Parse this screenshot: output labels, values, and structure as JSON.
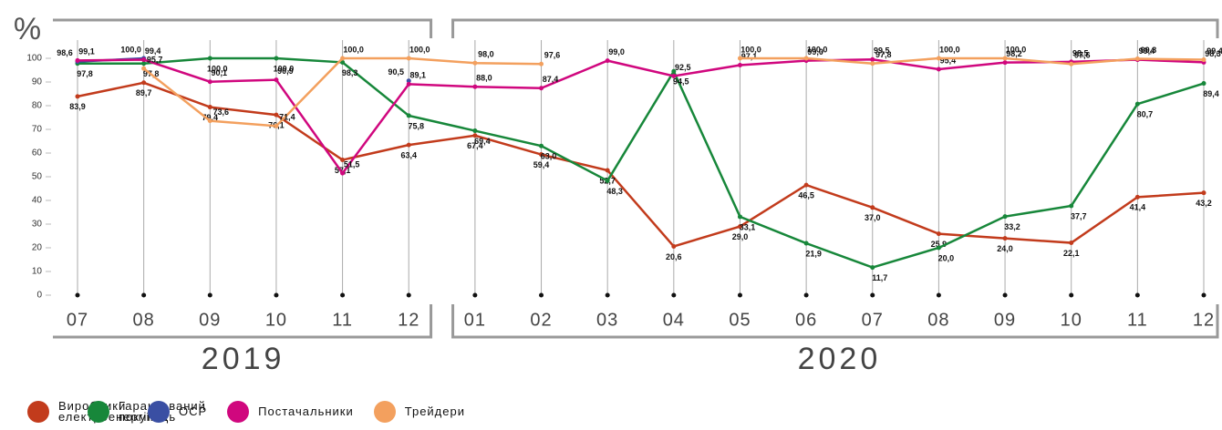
{
  "chart_data": {
    "type": "line",
    "y_label": "%",
    "categories": [
      "07",
      "08",
      "09",
      "10",
      "11",
      "12",
      "01",
      "02",
      "03",
      "04",
      "05",
      "06",
      "07",
      "08",
      "09",
      "10",
      "11",
      "12"
    ],
    "x_groups": [
      {
        "label": "2019",
        "count": 6
      },
      {
        "label": "2020",
        "count": 12
      }
    ],
    "ylim": [
      0,
      100
    ],
    "yticks": [
      0,
      10,
      20,
      30,
      40,
      50,
      60,
      70,
      80,
      90,
      100
    ],
    "series": [
      {
        "name": "Виробники електроенергії",
        "color": "#c23b1c",
        "values": [
          83.9,
          89.7,
          79.4,
          76.1,
          57.1,
          63.4,
          67.4,
          59.4,
          52.7,
          20.6,
          29.0,
          46.5,
          37.0,
          25.9,
          24.0,
          22.1,
          41.4,
          43.2
        ],
        "value_labels": [
          "83,9",
          "89,7",
          "79,4",
          "76,1",
          "57,1",
          "63,4",
          "67,4",
          "59,4",
          "52,7",
          "20,6",
          "29,0",
          "46,5",
          "37,0",
          "25,9",
          "24,0",
          "22,1",
          "41,4",
          "43,2"
        ]
      },
      {
        "name": "Гарантований покупець",
        "color": "#17873a",
        "values": [
          97.8,
          97.8,
          100.0,
          100.0,
          98.3,
          75.8,
          69.4,
          63.0,
          48.3,
          94.5,
          33.1,
          21.9,
          11.7,
          20.0,
          33.2,
          37.7,
          80.7,
          89.4
        ],
        "value_labels": [
          "97,8",
          "97,8",
          "100,0",
          "100,0",
          "98,3",
          "75,8",
          "69,4",
          "63,0",
          "48,3",
          "94,5",
          "33,1",
          "21,9",
          "11,7",
          "20,0",
          "33,2",
          "37,7",
          "80,7",
          "89,4"
        ]
      },
      {
        "name": "ОСР",
        "color": "#3a4fa3",
        "values": [
          98.6,
          100.0,
          null,
          null,
          null,
          90.5,
          null,
          null,
          null,
          null,
          null,
          null,
          null,
          null,
          null,
          null,
          null,
          null
        ],
        "value_labels": [
          "98,6",
          "100,0",
          null,
          null,
          null,
          "90,5",
          null,
          null,
          null,
          null,
          null,
          null,
          null,
          null,
          null,
          null,
          null,
          null
        ]
      },
      {
        "name": "Постачальники",
        "color": "#d0077e",
        "values": [
          99.1,
          99.4,
          90.1,
          90.9,
          51.5,
          89.1,
          88.0,
          87.4,
          99.0,
          92.5,
          97.1,
          99.0,
          99.5,
          95.4,
          98.2,
          98.5,
          99.4,
          98.3
        ],
        "value_labels": [
          "99,1",
          "99,4",
          "90,1",
          "90,9",
          "51,5",
          "89,1",
          "88,0",
          "87,4",
          "99,0",
          "92,5",
          "97,1",
          "99,0",
          "99,5",
          "95,4",
          "98,2",
          "98,5",
          "99,4",
          "98,3"
        ]
      },
      {
        "name": "Трейдери",
        "color": "#f3a05e",
        "values": [
          null,
          95.7,
          73.6,
          71.4,
          100.0,
          100.0,
          98.0,
          97.6,
          null,
          null,
          100.0,
          100.0,
          97.8,
          100.0,
          100.0,
          97.6,
          99.8,
          99.4
        ],
        "value_labels": [
          null,
          "95,7",
          "73,6",
          "71,4",
          "100,0",
          "100,0",
          "98,0",
          "97,6",
          null,
          null,
          "100,0",
          "100,0",
          "97,8",
          "100,0",
          "100,0",
          "97,6",
          "99,8",
          "99,4"
        ]
      }
    ]
  }
}
